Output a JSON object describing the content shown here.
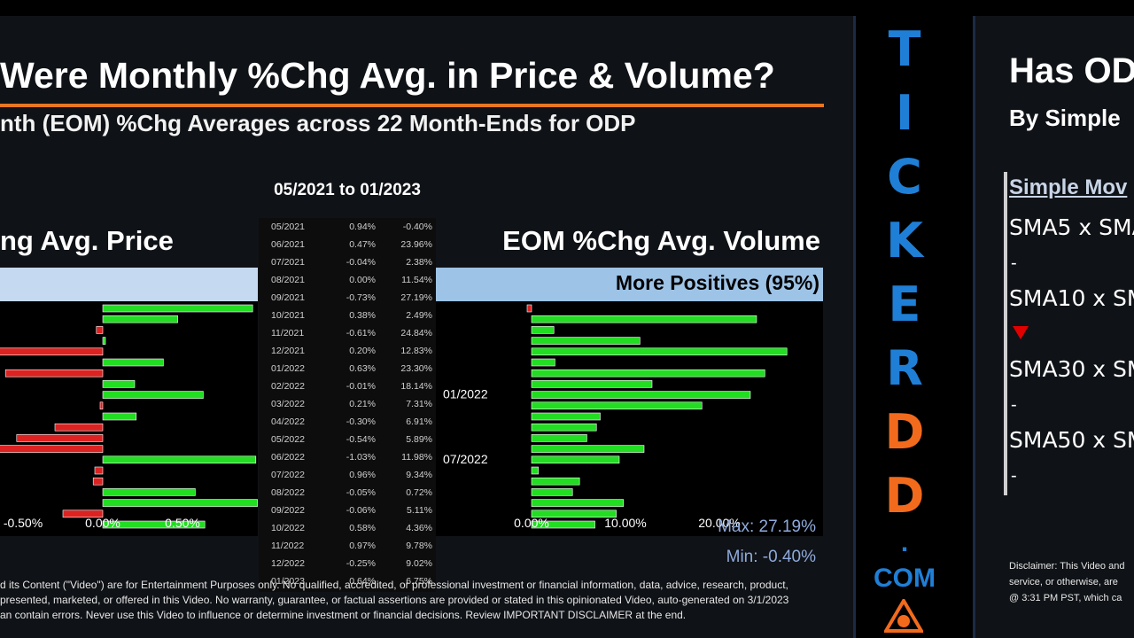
{
  "left_slide": {
    "title": "Were Monthly %Chg Avg. in Price & Volume?",
    "subtitle": "nth (EOM) %Chg Averages across 22 Month-Ends for ODP",
    "range_label": "05/2021 to 01/2023",
    "price_panel_title": "ng Avg. Price",
    "volume_panel_title": "EOM %Chg Avg. Volume",
    "volume_band_label": "More Positives (95%)",
    "max_label": "Max: 27.19%",
    "min_label": "Min: -0.40%",
    "disclaimer": [
      "d its Content (\"Video\") are for Entertainment Purposes only. No qualified, accredited, or professional investment or financial information, data, advice, research, product,",
      "presented, marketed, or offered in this Video. No warranty, guarantee, or factual assertions are provided or stated in this opinionated Video, auto-generated on 3/1/2023",
      "an contain errors. Never use this Video to influence or determine investment or financial decisions. Review IMPORTANT DISCLAIMER at the end."
    ]
  },
  "table": {
    "rows": [
      [
        "05/2021",
        "0.94%",
        "-0.40%"
      ],
      [
        "06/2021",
        "0.47%",
        "23.96%"
      ],
      [
        "07/2021",
        "-0.04%",
        "2.38%"
      ],
      [
        "08/2021",
        "0.00%",
        "11.54%"
      ],
      [
        "09/2021",
        "-0.73%",
        "27.19%"
      ],
      [
        "10/2021",
        "0.38%",
        "2.49%"
      ],
      [
        "11/2021",
        "-0.61%",
        "24.84%"
      ],
      [
        "12/2021",
        "0.20%",
        "12.83%"
      ],
      [
        "01/2022",
        "0.63%",
        "23.30%"
      ],
      [
        "02/2022",
        "-0.01%",
        "18.14%"
      ],
      [
        "03/2022",
        "0.21%",
        "7.31%"
      ],
      [
        "04/2022",
        "-0.30%",
        "6.91%"
      ],
      [
        "05/2022",
        "-0.54%",
        "5.89%"
      ],
      [
        "06/2022",
        "-1.03%",
        "11.98%"
      ],
      [
        "07/2022",
        "0.96%",
        "9.34%"
      ],
      [
        "08/2022",
        "-0.05%",
        "0.72%"
      ],
      [
        "09/2022",
        "-0.06%",
        "5.11%"
      ],
      [
        "10/2022",
        "0.58%",
        "4.36%"
      ],
      [
        "11/2022",
        "0.97%",
        "9.78%"
      ],
      [
        "12/2022",
        "-0.25%",
        "9.02%"
      ],
      [
        "01/2023",
        "0.64%",
        "6.75%"
      ]
    ]
  },
  "chart_data": [
    {
      "type": "bar",
      "orientation": "horizontal",
      "title": "ng Avg. Price",
      "categories": [
        "05/2021",
        "06/2021",
        "07/2021",
        "08/2021",
        "09/2021",
        "10/2021",
        "11/2021",
        "12/2021",
        "01/2022",
        "02/2022",
        "03/2022",
        "04/2022",
        "05/2022",
        "06/2022",
        "07/2022",
        "08/2022",
        "09/2022",
        "10/2022",
        "11/2022",
        "12/2022",
        "01/2023"
      ],
      "values": [
        0.94,
        0.47,
        -0.04,
        0.0,
        -0.73,
        0.38,
        -0.61,
        0.2,
        0.63,
        -0.01,
        0.21,
        -0.3,
        -0.54,
        -1.03,
        0.96,
        -0.05,
        -0.06,
        0.58,
        0.97,
        -0.25,
        0.64
      ],
      "tick_labels": [
        "-0.50%",
        "0.00%",
        "0.50%"
      ],
      "positive_color": "#22dd22",
      "negative_color": "#dd2222"
    },
    {
      "type": "bar",
      "orientation": "horizontal",
      "title": "EOM %Chg Avg. Volume",
      "categories": [
        "05/2021",
        "06/2021",
        "07/2021",
        "08/2021",
        "09/2021",
        "10/2021",
        "11/2021",
        "12/2021",
        "01/2022",
        "02/2022",
        "03/2022",
        "04/2022",
        "05/2022",
        "06/2022",
        "07/2022",
        "08/2022",
        "09/2022",
        "10/2022",
        "11/2022",
        "12/2022",
        "01/2023"
      ],
      "values": [
        -0.4,
        23.96,
        2.38,
        11.54,
        27.19,
        2.49,
        24.84,
        12.83,
        23.3,
        18.14,
        7.31,
        6.91,
        5.89,
        11.98,
        9.34,
        0.72,
        5.11,
        4.36,
        9.78,
        9.02,
        6.75
      ],
      "tick_labels": [
        "0.00%",
        "10.00%",
        "20.00%"
      ],
      "category_labels_shown": [
        "01/2022",
        "07/2022"
      ],
      "positive_color": "#22dd22",
      "negative_color": "#dd2222"
    }
  ],
  "brand": {
    "letters": [
      "T",
      "I",
      "C",
      "K",
      "E",
      "R",
      "D",
      "D"
    ],
    "dot": ".",
    "com": "COM",
    "blue": "#1f7fd6",
    "orange": "#f26b1d"
  },
  "right_slide": {
    "title": "Has OD",
    "subtitle": "By Simple",
    "heading": "Simple Mov",
    "items": [
      "SMA5 x SMA",
      "SMA10 x SM",
      "SMA30 x SM",
      "SMA50 x SM"
    ],
    "dash": "-",
    "disclaimer": [
      "Disclaimer: This Video and",
      "service, or otherwise, are",
      "@ 3:31 PM PST, which ca"
    ]
  }
}
